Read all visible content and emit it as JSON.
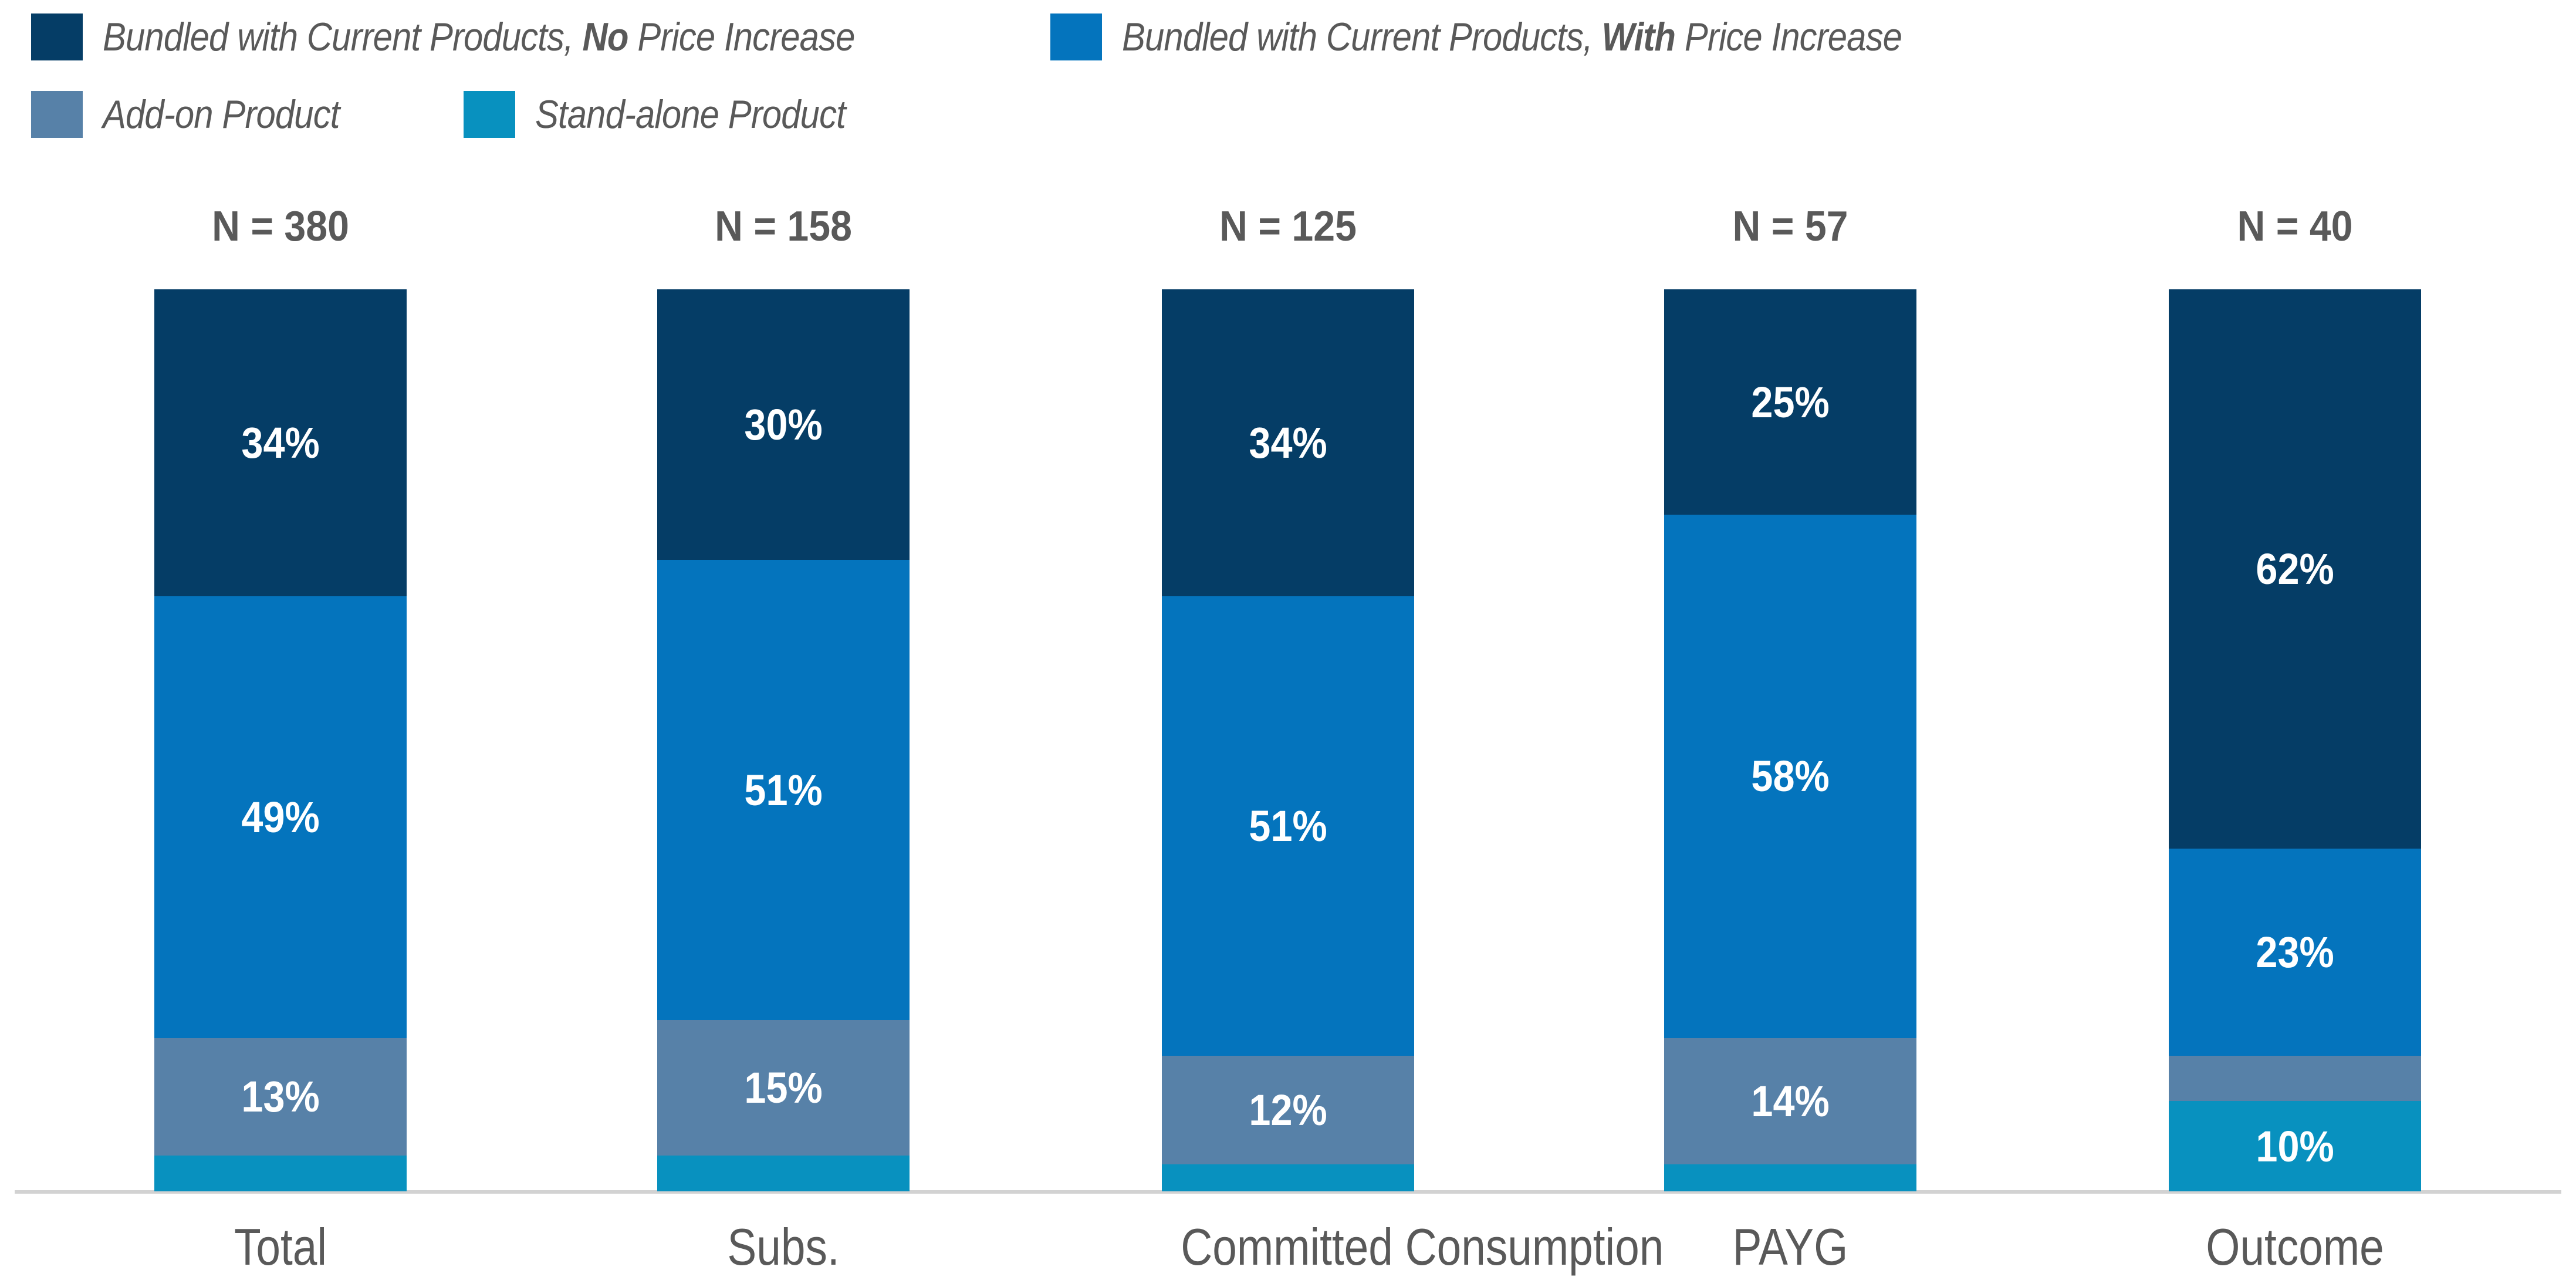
{
  "legend": {
    "items": [
      {
        "label_prefix": "Bundled with Current Products, ",
        "label_bold": "No",
        "label_suffix": " Price Increase",
        "color": "#053D66"
      },
      {
        "label_prefix": "Bundled with Current Products, ",
        "label_bold": "With",
        "label_suffix": " Price Increase",
        "color": "#0474BD"
      },
      {
        "label_prefix": "Add-on Product",
        "label_bold": "",
        "label_suffix": "",
        "color": "#5781A8"
      },
      {
        "label_prefix": "Stand-alone Product",
        "label_bold": "",
        "label_suffix": "",
        "color": "#0891BF"
      }
    ]
  },
  "chart_data": {
    "type": "bar",
    "variant": "stacked-100-percent-column",
    "unit": "percent",
    "legend_position": "top-left",
    "grid": false,
    "ylim": [
      0,
      100
    ],
    "series": [
      {
        "name": "Bundled with Current Products, No Price Increase",
        "color": "#053D66"
      },
      {
        "name": "Bundled with Current Products, With Price Increase",
        "color": "#0474BD"
      },
      {
        "name": "Add-on Product",
        "color": "#5781A8"
      },
      {
        "name": "Stand-alone Product",
        "color": "#0891BF"
      }
    ],
    "categories": [
      "Total",
      "Subs.",
      "Committed Consumption",
      "PAYG",
      "Outcome"
    ],
    "groups": [
      {
        "category": "Total",
        "n": 380,
        "n_label": "N = 380",
        "values": [
          34,
          49,
          13,
          4
        ],
        "labels": [
          "34%",
          "49%",
          "13%",
          ""
        ]
      },
      {
        "category": "Subs.",
        "n": 158,
        "n_label": "N = 158",
        "values": [
          30,
          51,
          15,
          4
        ],
        "labels": [
          "30%",
          "51%",
          "15%",
          ""
        ]
      },
      {
        "category": "Committed Consumption",
        "n": 125,
        "n_label": "N = 125",
        "values": [
          34,
          51,
          12,
          3
        ],
        "labels": [
          "34%",
          "51%",
          "12%",
          ""
        ]
      },
      {
        "category": "PAYG",
        "n": 57,
        "n_label": "N = 57",
        "values": [
          25,
          58,
          14,
          3
        ],
        "labels": [
          "25%",
          "58%",
          "14%",
          ""
        ]
      },
      {
        "category": "Outcome",
        "n": 40,
        "n_label": "N = 40",
        "values": [
          62,
          23,
          5,
          10
        ],
        "labels": [
          "62%",
          "23%",
          "",
          "10%"
        ]
      }
    ],
    "axis_line_color": "#D2D2D2",
    "label_text_color": "#595959",
    "value_label_color": "#FFFFFF"
  }
}
